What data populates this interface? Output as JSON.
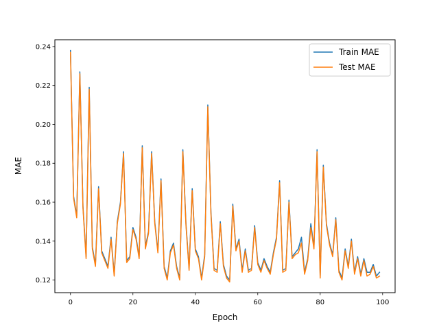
{
  "chart_data": {
    "type": "line",
    "title": "",
    "xlabel": "Epoch",
    "ylabel": "MAE",
    "xlim": [
      -5,
      104
    ],
    "ylim": [
      0.1135,
      0.2435
    ],
    "xticks": [
      0,
      20,
      40,
      60,
      80,
      100
    ],
    "yticks": [
      0.12,
      0.14,
      0.16,
      0.18,
      0.2,
      0.22,
      0.24
    ],
    "xtick_labels": [
      "0",
      "20",
      "40",
      "60",
      "80",
      "100"
    ],
    "ytick_labels": [
      "0.12",
      "0.14",
      "0.16",
      "0.18",
      "0.20",
      "0.22",
      "0.24"
    ],
    "grid": false,
    "legend": "upper-right",
    "x": [
      0,
      1,
      2,
      3,
      4,
      5,
      6,
      7,
      8,
      9,
      10,
      11,
      12,
      13,
      14,
      15,
      16,
      17,
      18,
      19,
      20,
      21,
      22,
      23,
      24,
      25,
      26,
      27,
      28,
      29,
      30,
      31,
      32,
      33,
      34,
      35,
      36,
      37,
      38,
      39,
      40,
      41,
      42,
      43,
      44,
      45,
      46,
      47,
      48,
      49,
      50,
      51,
      52,
      53,
      54,
      55,
      56,
      57,
      58,
      59,
      60,
      61,
      62,
      63,
      64,
      65,
      66,
      67,
      68,
      69,
      70,
      71,
      72,
      73,
      74,
      75,
      76,
      77,
      78,
      79,
      80,
      81,
      82,
      83,
      84,
      85,
      86,
      87,
      88,
      89,
      90,
      91,
      92,
      93,
      94,
      95,
      96,
      97,
      98,
      99
    ],
    "series": [
      {
        "name": "Train MAE",
        "color": "#1f77b4",
        "values": [
          0.238,
          0.163,
          0.153,
          0.227,
          0.158,
          0.132,
          0.219,
          0.137,
          0.128,
          0.168,
          0.135,
          0.131,
          0.127,
          0.142,
          0.123,
          0.15,
          0.16,
          0.186,
          0.13,
          0.132,
          0.147,
          0.142,
          0.132,
          0.189,
          0.137,
          0.145,
          0.186,
          0.15,
          0.135,
          0.172,
          0.127,
          0.121,
          0.135,
          0.139,
          0.127,
          0.121,
          0.187,
          0.149,
          0.126,
          0.167,
          0.136,
          0.132,
          0.121,
          0.133,
          0.21,
          0.155,
          0.126,
          0.125,
          0.15,
          0.128,
          0.122,
          0.12,
          0.159,
          0.136,
          0.141,
          0.125,
          0.136,
          0.125,
          0.126,
          0.148,
          0.129,
          0.125,
          0.131,
          0.127,
          0.124,
          0.134,
          0.142,
          0.171,
          0.125,
          0.126,
          0.161,
          0.132,
          0.134,
          0.136,
          0.142,
          0.124,
          0.131,
          0.149,
          0.137,
          0.187,
          0.122,
          0.179,
          0.149,
          0.139,
          0.133,
          0.152,
          0.125,
          0.121,
          0.136,
          0.127,
          0.141,
          0.124,
          0.132,
          0.123,
          0.131,
          0.124,
          0.124,
          0.128,
          0.122,
          0.124
        ]
      },
      {
        "name": "Test MAE",
        "color": "#ff7f0e",
        "values": [
          0.237,
          0.162,
          0.152,
          0.226,
          0.157,
          0.131,
          0.218,
          0.136,
          0.127,
          0.167,
          0.134,
          0.13,
          0.126,
          0.141,
          0.122,
          0.149,
          0.159,
          0.185,
          0.129,
          0.131,
          0.146,
          0.141,
          0.131,
          0.188,
          0.136,
          0.144,
          0.185,
          0.149,
          0.134,
          0.171,
          0.126,
          0.12,
          0.134,
          0.138,
          0.126,
          0.12,
          0.186,
          0.148,
          0.125,
          0.166,
          0.135,
          0.131,
          0.12,
          0.132,
          0.209,
          0.154,
          0.125,
          0.124,
          0.149,
          0.127,
          0.121,
          0.119,
          0.158,
          0.135,
          0.14,
          0.124,
          0.135,
          0.124,
          0.125,
          0.147,
          0.128,
          0.124,
          0.13,
          0.126,
          0.123,
          0.133,
          0.141,
          0.17,
          0.124,
          0.125,
          0.16,
          0.131,
          0.133,
          0.134,
          0.139,
          0.123,
          0.13,
          0.147,
          0.136,
          0.186,
          0.121,
          0.178,
          0.148,
          0.138,
          0.132,
          0.151,
          0.124,
          0.12,
          0.135,
          0.126,
          0.14,
          0.123,
          0.131,
          0.122,
          0.13,
          0.122,
          0.123,
          0.127,
          0.121,
          0.122
        ]
      }
    ]
  }
}
